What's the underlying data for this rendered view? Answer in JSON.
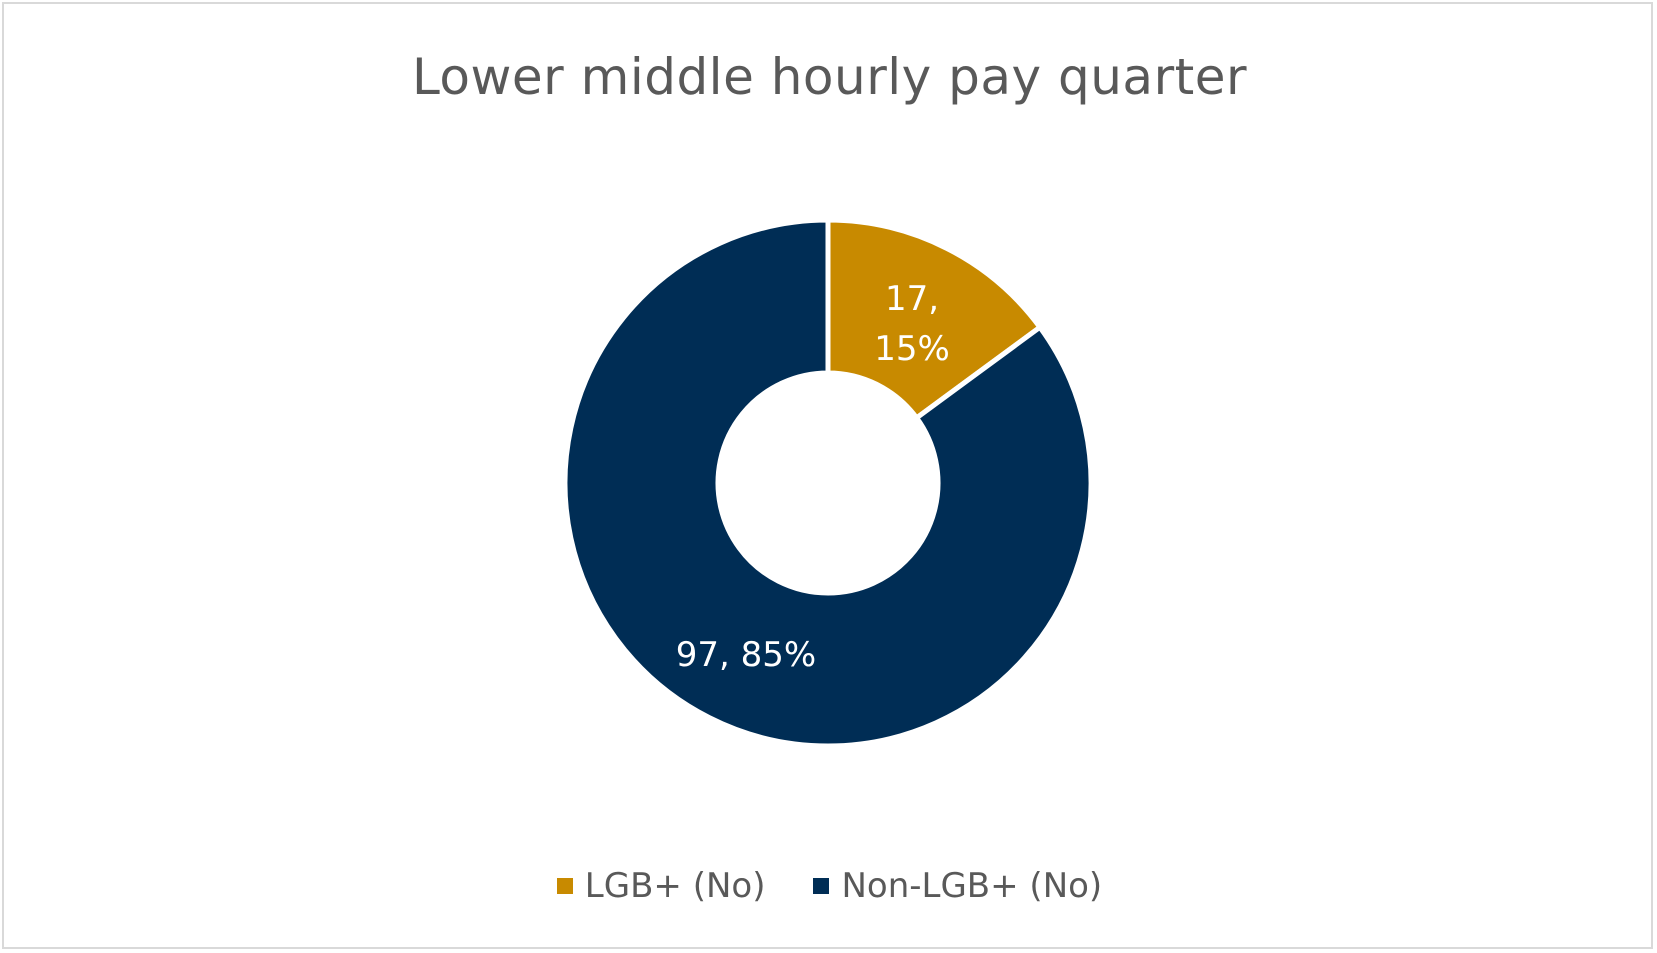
{
  "chart_data": {
    "type": "pie",
    "variant": "donut",
    "title": "Lower middle hourly pay quarter",
    "categories": [
      "LGB+ (No)",
      "Non-LGB+ (No)"
    ],
    "values": [
      17,
      97
    ],
    "percentages": [
      15,
      85
    ],
    "data_labels": [
      "17, 15%",
      "97, 85%"
    ],
    "colors": [
      "#c88a00",
      "#002d55"
    ],
    "legend_position": "bottom"
  }
}
